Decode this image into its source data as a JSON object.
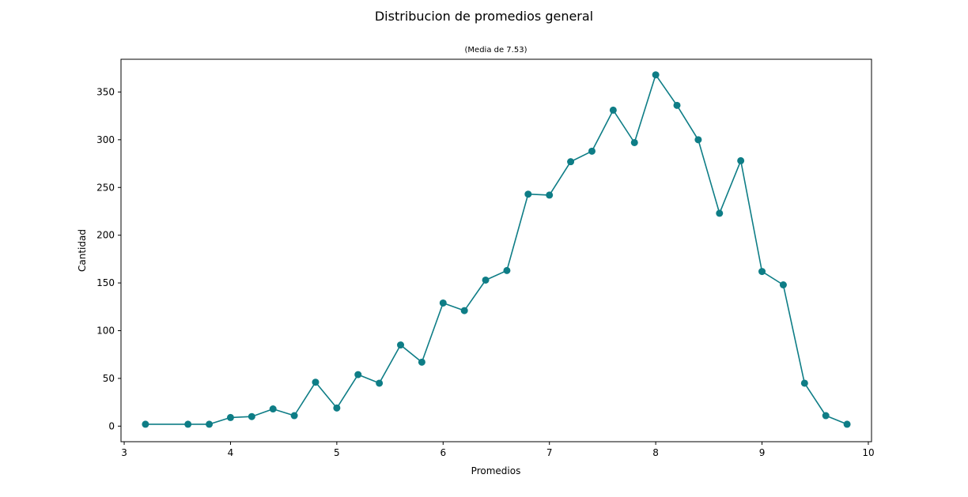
{
  "chart_data": {
    "type": "line",
    "title": "Distribucion de promedios general",
    "subtitle": "(Media de 7.53)",
    "xlabel": "Promedios",
    "ylabel": "Cantidad",
    "xlim": [
      2.97,
      10.03
    ],
    "ylim": [
      -16.3,
      384.3
    ],
    "xticks": [
      "3",
      "4",
      "5",
      "6",
      "7",
      "8",
      "9",
      "10"
    ],
    "yticks": [
      "0",
      "50",
      "100",
      "150",
      "200",
      "250",
      "300",
      "350"
    ],
    "grid": false,
    "line_color": "#0e7d86",
    "series": [
      {
        "marker": "circle",
        "x": [
          3.2,
          3.6,
          3.8,
          4.0,
          4.2,
          4.4,
          4.6,
          4.8,
          5.0,
          5.2,
          5.4,
          5.6,
          5.8,
          6.0,
          6.2,
          6.4,
          6.6,
          6.8,
          7.0,
          7.2,
          7.4,
          7.6,
          7.8,
          8.0,
          8.2,
          8.4,
          8.6,
          8.8,
          9.0,
          9.2,
          9.4,
          9.6,
          9.8
        ],
        "y": [
          2,
          2,
          2,
          9,
          10,
          18,
          11,
          46,
          19,
          54,
          45,
          85,
          67,
          129,
          121,
          153,
          163,
          243,
          242,
          277,
          288,
          331,
          297,
          368,
          336,
          300,
          223,
          278,
          162,
          148,
          45,
          11,
          2
        ]
      }
    ]
  }
}
